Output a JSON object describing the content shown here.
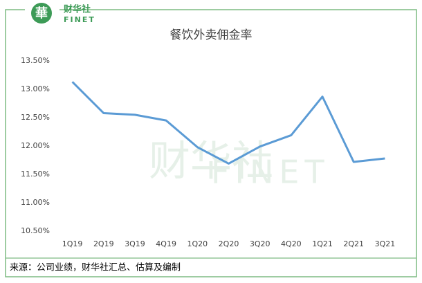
{
  "logo": {
    "name": "财华社",
    "sub": "FINET"
  },
  "chart_data": {
    "type": "line",
    "title": "餐饮外卖佣金率",
    "categories": [
      "1Q19",
      "2Q19",
      "3Q19",
      "4Q19",
      "1Q20",
      "2Q20",
      "3Q20",
      "4Q20",
      "1Q21",
      "2Q21",
      "3Q21"
    ],
    "values": [
      13.13,
      12.58,
      12.55,
      12.45,
      11.98,
      11.69,
      11.99,
      12.19,
      12.87,
      11.72,
      11.78
    ],
    "color": "#5b9bd5",
    "ylim": [
      10.5,
      13.5
    ],
    "yticks": [
      {
        "value": 10.5,
        "label": "10.50%"
      },
      {
        "value": 11,
        "label": "11.00%"
      },
      {
        "value": 11.5,
        "label": "11.50%"
      },
      {
        "value": 12,
        "label": "12.00%"
      },
      {
        "value": 12.5,
        "label": "12.50%"
      },
      {
        "value": 13,
        "label": "13.00%"
      },
      {
        "value": 13.5,
        "label": "13.50%"
      }
    ],
    "grid": false,
    "source": "来源：公司业绩，财华社汇总、估算及编制"
  }
}
